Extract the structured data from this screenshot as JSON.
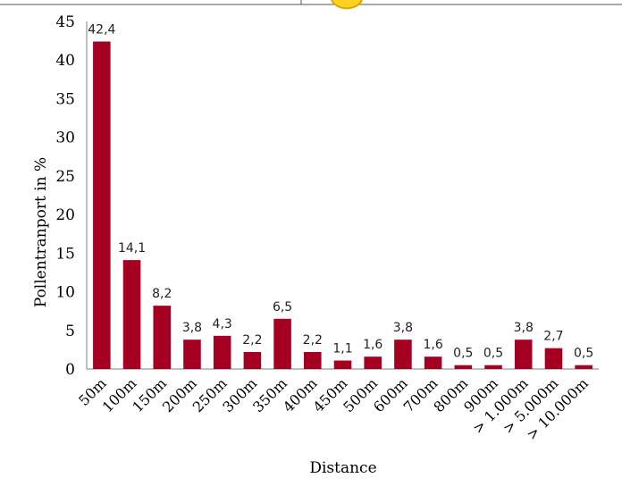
{
  "chart_data": {
    "type": "bar",
    "categories": [
      "50m",
      "100m",
      "150m",
      "200m",
      "250m",
      "300m",
      "350m",
      "400m",
      "450m",
      "500m",
      "600m",
      "700m",
      "800m",
      "900m",
      "> 1.000m",
      "> 5.000m",
      "> 10.000m"
    ],
    "values": [
      42.4,
      14.1,
      8.2,
      3.8,
      4.3,
      2.2,
      6.5,
      2.2,
      1.1,
      1.6,
      3.8,
      1.6,
      0.5,
      0.5,
      3.8,
      2.7,
      0.5
    ],
    "data_labels": [
      "42,4",
      "14,1",
      "8,2",
      "3,8",
      "4,3",
      "2,2",
      "6,5",
      "2,2",
      "1,1",
      "1,6",
      "3,8",
      "1,6",
      "0,5",
      "0,5",
      "3,8",
      "2,7",
      "0,5"
    ],
    "title": "",
    "xlabel": "Distance",
    "ylabel": "Pollentranport in %",
    "ylim": [
      0,
      45
    ],
    "yticks": [
      0,
      5,
      10,
      15,
      20,
      25,
      30,
      35,
      40,
      45
    ],
    "grid": false,
    "legend": "none",
    "bar_color": "#A50021"
  }
}
